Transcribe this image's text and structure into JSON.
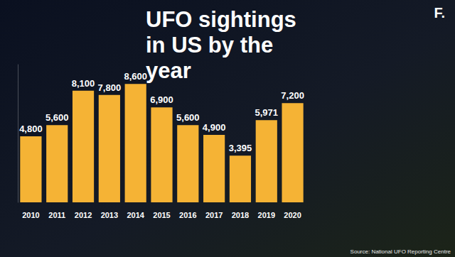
{
  "chart_data": {
    "type": "bar",
    "title": "UFO sightings in US by the year",
    "categories": [
      "2010",
      "2011",
      "2012",
      "2013",
      "2014",
      "2015",
      "2016",
      "2017",
      "2018",
      "2019",
      "2020"
    ],
    "values": [
      4800,
      5600,
      8100,
      7800,
      8600,
      6900,
      5600,
      4900,
      3395,
      5971,
      7200
    ],
    "value_labels": [
      "4,800",
      "5,600",
      "8,100",
      "7,800",
      "8,600",
      "6,900",
      "5,600",
      "4,900",
      "3,395",
      "5,971",
      "7,200"
    ],
    "color": "#f5b335",
    "ylim": [
      0,
      10000
    ],
    "grid": false,
    "data_labels": true,
    "tick_labels": "x",
    "annotations": [
      "F.",
      "Source: National UFO Reporting Centre"
    ]
  }
}
